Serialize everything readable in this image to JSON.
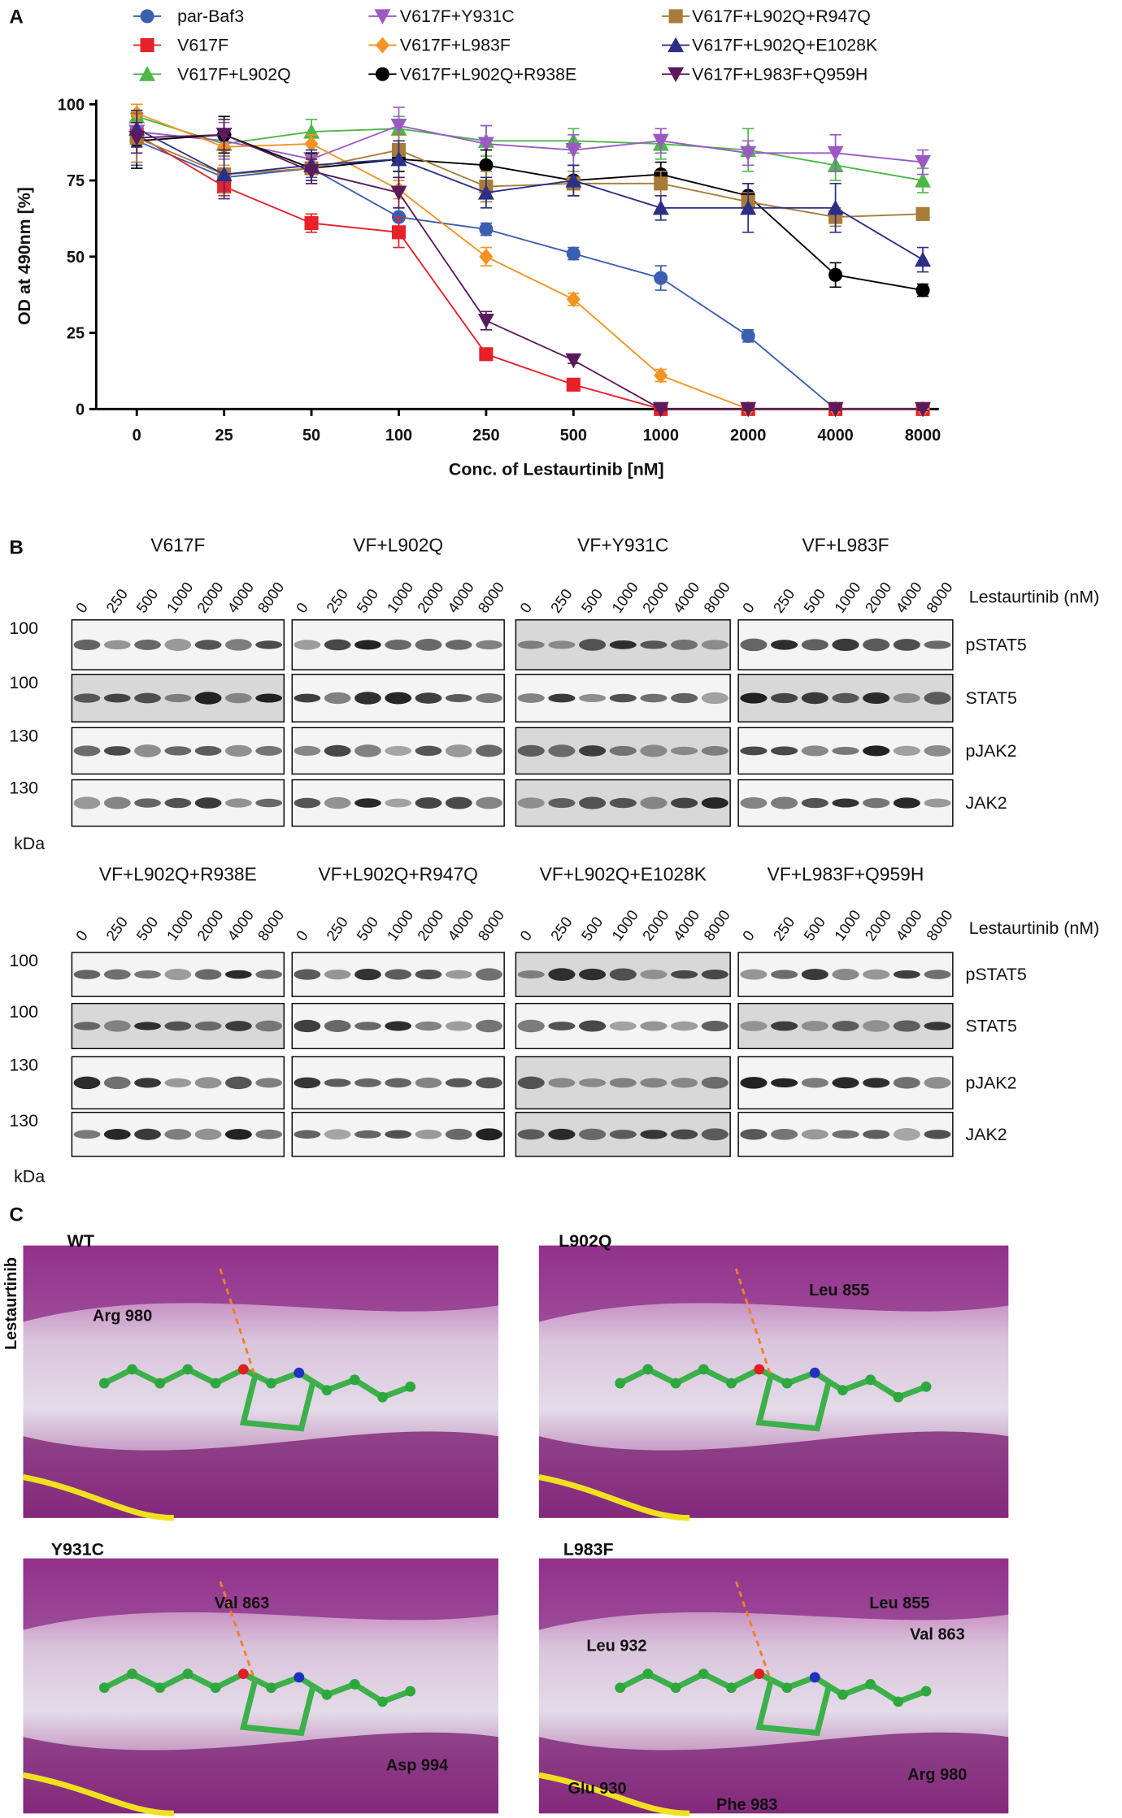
{
  "figure_labels": {
    "a": "A",
    "b": "B",
    "c": "C"
  },
  "chart_data": {
    "type": "line",
    "x_label": "Conc. of Lestaurtinib [nM]",
    "y_label": "OD at 490nm [%]",
    "categories": [
      "0",
      "25",
      "50",
      "100",
      "250",
      "500",
      "1000",
      "2000",
      "4000",
      "8000"
    ],
    "ylim": [
      0,
      100
    ],
    "yticks": [
      0,
      25,
      50,
      75,
      100
    ],
    "series": [
      {
        "name": "par-Baf3",
        "color": "#3a5fb0",
        "marker": "circle",
        "values": [
          88,
          76,
          79,
          63,
          59,
          51,
          43,
          24,
          0,
          0
        ],
        "errors": [
          8,
          3,
          3,
          3,
          2,
          2,
          4,
          2,
          0.5,
          0.5
        ]
      },
      {
        "name": "V617F",
        "color": "#e8202a",
        "marker": "square",
        "values": [
          90,
          73,
          61,
          58,
          18,
          8,
          0,
          0,
          0,
          0
        ],
        "errors": [
          3,
          3,
          3,
          5,
          1.5,
          1,
          0.5,
          0.5,
          0.5,
          0.5
        ]
      },
      {
        "name": "V617F+L902Q",
        "color": "#4cb848",
        "marker": "triangle-up",
        "values": [
          96,
          87,
          91,
          92,
          88,
          88,
          87,
          85,
          80,
          75
        ],
        "errors": [
          4,
          4,
          4,
          4,
          5,
          4,
          5,
          7,
          5,
          4
        ]
      },
      {
        "name": "V617F+Y931C",
        "color": "#9b59c6",
        "marker": "triangle-down",
        "values": [
          91,
          88,
          82,
          93,
          87,
          85,
          88,
          84,
          84,
          81
        ],
        "errors": [
          5,
          6,
          5,
          6,
          6,
          5,
          4,
          4,
          6,
          4
        ]
      },
      {
        "name": "V617F+L983F",
        "color": "#f39321",
        "marker": "diamond",
        "values": [
          97,
          86,
          87,
          72,
          50,
          36,
          11,
          0,
          0,
          0
        ],
        "errors": [
          3,
          6,
          3,
          3,
          3,
          2,
          2,
          0.5,
          0.5,
          0.5
        ]
      },
      {
        "name": "V617F+L902Q+R938E",
        "color": "#000000",
        "marker": "circle",
        "values": [
          88,
          90,
          79,
          82,
          80,
          75,
          77,
          70,
          44,
          39
        ],
        "errors": [
          9,
          6,
          5,
          4,
          5,
          5,
          4,
          4,
          4,
          2
        ]
      },
      {
        "name": "V617F+L902Q+R947Q",
        "color": "#a87b3a",
        "marker": "square",
        "values": [
          89,
          77,
          79,
          85,
          73,
          74,
          74,
          68,
          63,
          64
        ],
        "errors": [
          8,
          6,
          4,
          5,
          5,
          4,
          4,
          3,
          3,
          2
        ]
      },
      {
        "name": "V617F+L902Q+E1028K",
        "color": "#2b2f86",
        "marker": "triangle-up",
        "values": [
          92,
          77,
          80,
          82,
          71,
          75,
          66,
          66,
          66,
          49
        ],
        "errors": [
          6,
          8,
          5,
          6,
          5,
          5,
          4,
          8,
          8,
          4
        ]
      },
      {
        "name": "V617F+L983F+Q959H",
        "color": "#5b1a5c",
        "marker": "triangle-down",
        "values": [
          89,
          90,
          78,
          71,
          29,
          16,
          0,
          0,
          0,
          0
        ],
        "errors": [
          5,
          5,
          4,
          5,
          3,
          1,
          0.5,
          0.5,
          0.5,
          0.5
        ]
      }
    ]
  },
  "blots": {
    "lane_axis_label": "Lestaurtinib (nM)",
    "lanes": [
      "0",
      "250",
      "500",
      "1000",
      "2000",
      "4000",
      "8000"
    ],
    "proteins": [
      "pSTAT5",
      "STAT5",
      "pJAK2",
      "JAK2"
    ],
    "kda_markers": [
      "100",
      "100",
      "130",
      "130"
    ],
    "kda_unit": "kDa",
    "panels": [
      [
        "V617F",
        "VF+L902Q",
        "VF+Y931C",
        "VF+L983F"
      ],
      [
        "VF+L902Q+R938E",
        "VF+L902Q+R947Q",
        "VF+L902Q+E1028K",
        "VF+L983F+Q959H"
      ]
    ]
  },
  "docking": {
    "ligand": "Lestaurtinib",
    "panels": [
      {
        "title": "WT",
        "residues": [
          "Arg 980"
        ]
      },
      {
        "title": "L902Q",
        "residues": [
          "Leu 855"
        ]
      },
      {
        "title": "Y931C",
        "residues": [
          "Val 863",
          "Asp 994"
        ]
      },
      {
        "title": "L983F",
        "residues": [
          "Leu 855",
          "Val 863",
          "Leu 932",
          "Glu 930",
          "Phe 983",
          "Arg 980"
        ]
      }
    ]
  }
}
